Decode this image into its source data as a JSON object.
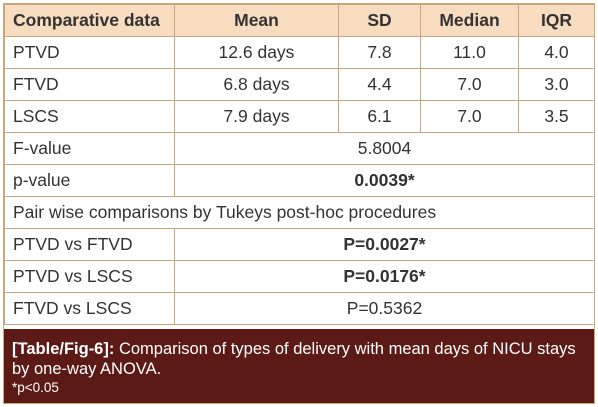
{
  "table": {
    "headers": [
      "Comparative data",
      "Mean",
      "SD",
      "Median",
      "IQR"
    ],
    "rows": [
      [
        "PTVD",
        "12.6 days",
        "7.8",
        "11.0",
        "4.0"
      ],
      [
        "FTVD",
        "6.8 days",
        "4.4",
        "7.0",
        "3.0"
      ],
      [
        "LSCS",
        "7.9 days",
        "6.1",
        "7.0",
        "3.5"
      ]
    ],
    "f_value": {
      "label": "F-value",
      "value": "5.8004"
    },
    "p_value": {
      "label": "p-value",
      "value": "0.0039*"
    },
    "pairwise_note": "Pair wise comparisons by Tukeys post-hoc procedures",
    "comparisons": [
      {
        "label": "PTVD vs FTVD",
        "value": "P=0.0027*"
      },
      {
        "label": "PTVD vs LSCS",
        "value": "P=0.0176*"
      },
      {
        "label": "FTVD vs LSCS",
        "value": "P=0.5362"
      }
    ]
  },
  "caption": {
    "label": "[Table/Fig-6]:",
    "text": "Comparison of types of delivery with mean days of NICU stays by one-way ANOVA.",
    "footnote": "*p<0.05"
  },
  "colors": {
    "header_bg": "#f7dcc0",
    "border": "#c9a77a",
    "caption_bg": "#5c1a17"
  }
}
